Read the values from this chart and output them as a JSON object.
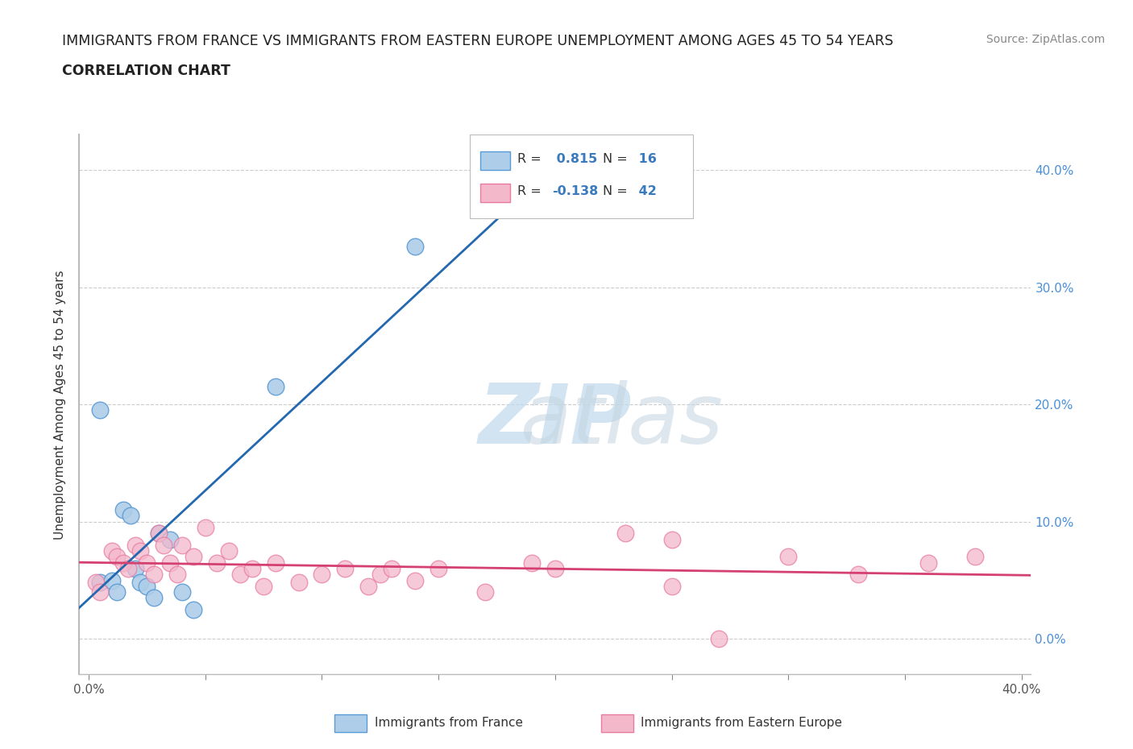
{
  "title_line1": "IMMIGRANTS FROM FRANCE VS IMMIGRANTS FROM EASTERN EUROPE UNEMPLOYMENT AMONG AGES 45 TO 54 YEARS",
  "title_line2": "CORRELATION CHART",
  "source_text": "Source: ZipAtlas.com",
  "ylabel": "Unemployment Among Ages 45 to 54 years",
  "xlim": [
    -0.004,
    0.404
  ],
  "ylim": [
    -0.03,
    0.43
  ],
  "yticks": [
    0.0,
    0.1,
    0.2,
    0.3,
    0.4
  ],
  "xtick_positions": [
    0.0,
    0.05,
    0.1,
    0.15,
    0.2,
    0.25,
    0.3,
    0.35,
    0.4
  ],
  "france_color": "#aecde8",
  "france_edge_color": "#5b9bd5",
  "eastern_europe_color": "#f4b8cb",
  "eastern_europe_edge_color": "#e87ca0",
  "france_line_color": "#2468b0",
  "eastern_europe_line_color": "#d44070",
  "france_R": 0.815,
  "france_N": 16,
  "eastern_europe_R": -0.138,
  "eastern_europe_N": 42,
  "background_color": "#ffffff",
  "grid_color": "#cccccc",
  "watermark_zip_color": "#b8d4ea",
  "watermark_atlas_color": "#b8cfe0",
  "right_tick_color": "#4a90d9",
  "france_x": [
    0.005,
    0.01,
    0.012,
    0.015,
    0.018,
    0.02,
    0.022,
    0.025,
    0.028,
    0.03,
    0.035,
    0.04,
    0.045,
    0.08,
    0.14,
    0.005
  ],
  "france_y": [
    0.048,
    0.05,
    0.04,
    0.11,
    0.105,
    0.06,
    0.048,
    0.045,
    0.035,
    0.09,
    0.085,
    0.04,
    0.025,
    0.215,
    0.335,
    0.195
  ],
  "eastern_europe_x": [
    0.003,
    0.005,
    0.01,
    0.012,
    0.015,
    0.017,
    0.02,
    0.022,
    0.025,
    0.028,
    0.03,
    0.032,
    0.035,
    0.038,
    0.04,
    0.045,
    0.05,
    0.055,
    0.06,
    0.065,
    0.07,
    0.075,
    0.08,
    0.09,
    0.1,
    0.11,
    0.12,
    0.125,
    0.13,
    0.14,
    0.15,
    0.17,
    0.19,
    0.2,
    0.23,
    0.25,
    0.27,
    0.3,
    0.33,
    0.36,
    0.38,
    0.25
  ],
  "eastern_europe_y": [
    0.048,
    0.04,
    0.075,
    0.07,
    0.065,
    0.06,
    0.08,
    0.075,
    0.065,
    0.055,
    0.09,
    0.08,
    0.065,
    0.055,
    0.08,
    0.07,
    0.095,
    0.065,
    0.075,
    0.055,
    0.06,
    0.045,
    0.065,
    0.048,
    0.055,
    0.06,
    0.045,
    0.055,
    0.06,
    0.05,
    0.06,
    0.04,
    0.065,
    0.06,
    0.09,
    0.045,
    0.0,
    0.07,
    0.055,
    0.065,
    0.07,
    0.085
  ]
}
